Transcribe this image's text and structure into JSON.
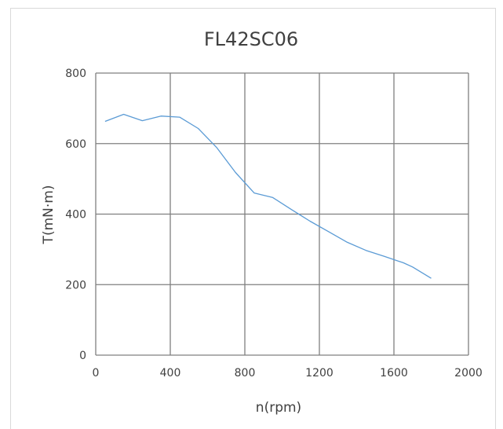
{
  "chart_data": {
    "type": "line",
    "title": "FL42SC06",
    "xlabel": "n(rpm)",
    "ylabel": "T(mN·m)",
    "xlim": [
      0,
      2000
    ],
    "ylim": [
      0,
      800
    ],
    "x_ticks": [
      "0",
      "400",
      "800",
      "1200",
      "1600",
      "2000"
    ],
    "y_ticks": [
      "0",
      "200",
      "400",
      "600",
      "800"
    ],
    "grid": true,
    "legend": "none",
    "series": [
      {
        "color": "#5b9bd5",
        "x": [
          50,
          150,
          250,
          350,
          450,
          550,
          650,
          750,
          850,
          950,
          1050,
          1150,
          1250,
          1350,
          1450,
          1550,
          1650,
          1700,
          1800
        ],
        "y": [
          663,
          683,
          665,
          678,
          675,
          643,
          588,
          518,
          460,
          447,
          413,
          380,
          350,
          320,
          297,
          280,
          262,
          250,
          218
        ]
      }
    ]
  }
}
